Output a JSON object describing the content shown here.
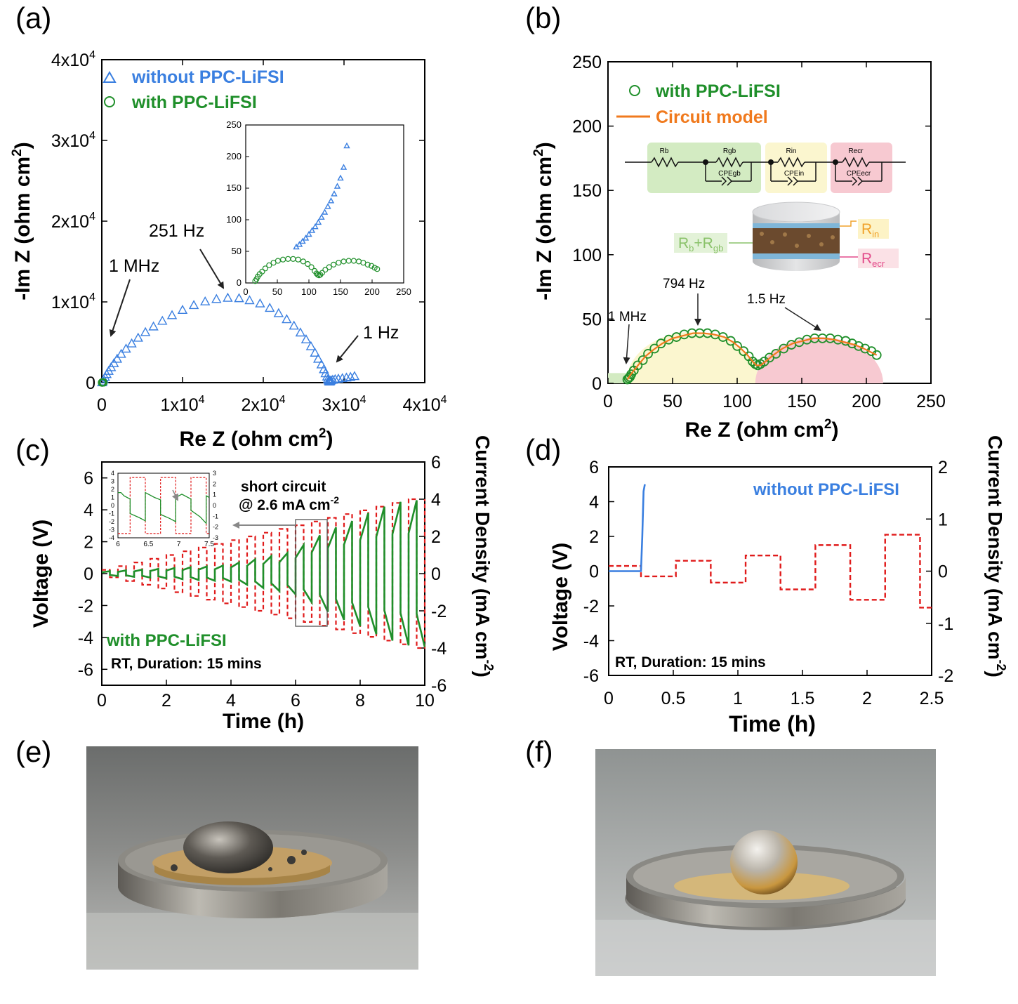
{
  "panels": {
    "a": {
      "label": "(a)"
    },
    "b": {
      "label": "(b)"
    },
    "c": {
      "label": "(c)"
    },
    "d": {
      "label": "(d)"
    },
    "e": {
      "label": "(e)"
    },
    "f": {
      "label": "(f)"
    }
  },
  "colors": {
    "blue": "#3a7fe0",
    "green": "#1f8f2a",
    "red": "#e01b1b",
    "orange": "#f07a1e",
    "pink": "#e24a8a",
    "green_bg": "#d3ebc2",
    "yellow_bg": "#fbf6cf",
    "pink_bg": "#f7c9d1"
  },
  "chart_data": [
    {
      "id": "a",
      "type": "scatter",
      "xlabel_main": "Re Z (ohm cm",
      "xlabel_sup": "2",
      "xlabel_end": ")",
      "ylabel_main": "-Im Z (ohm cm",
      "ylabel_sup": "2",
      "ylabel_end": ")",
      "xlim": [
        0,
        40000
      ],
      "ylim": [
        0,
        40000
      ],
      "x_ticks": [
        "0",
        "1x10",
        "2x10",
        "3x10",
        "4x10"
      ],
      "y_ticks": [
        "0",
        "1x10",
        "2x10",
        "3x10",
        "4x10"
      ],
      "tick_exp": "4",
      "legend": [
        "without PPC-LiFSI",
        "with PPC-LiFSI"
      ],
      "annotations": [
        "1 MHz",
        "251 Hz",
        "1 Hz"
      ],
      "series": [
        {
          "name": "without PPC-LiFSI",
          "marker": "triangle",
          "x": [
            30,
            120,
            250,
            400,
            600,
            850,
            1150,
            1500,
            1900,
            2400,
            3000,
            3700,
            4500,
            5400,
            6400,
            7500,
            8700,
            10000,
            11400,
            12800,
            14200,
            15600,
            17000,
            18300,
            19600,
            20800,
            21900,
            22900,
            23800,
            24600,
            25300,
            25900,
            26400,
            26800,
            27200,
            27500,
            27700,
            27900,
            28000,
            28100,
            28150,
            28200,
            28250,
            28300,
            28400,
            28600,
            28900,
            29300,
            29800,
            30300,
            30800,
            31300
          ],
          "y": [
            30,
            150,
            400,
            700,
            1050,
            1450,
            1900,
            2400,
            2950,
            3550,
            4200,
            4850,
            5550,
            6250,
            6950,
            7650,
            8350,
            9000,
            9600,
            10050,
            10350,
            10500,
            10450,
            10200,
            9800,
            9250,
            8600,
            7850,
            7050,
            6200,
            5350,
            4500,
            3700,
            2950,
            2250,
            1650,
            1150,
            750,
            450,
            250,
            150,
            120,
            150,
            200,
            280,
            350,
            420,
            480,
            550,
            620,
            700,
            800
          ]
        },
        {
          "name": "with PPC-LiFSI",
          "marker": "circle",
          "x": [
            15,
            40,
            70,
            100,
            130,
            160,
            190,
            210
          ],
          "y": [
            5,
            30,
            35,
            20,
            15,
            30,
            35,
            25
          ]
        }
      ],
      "inset": {
        "xlim": [
          0,
          250
        ],
        "ylim": [
          0,
          250
        ],
        "x_ticks": [
          "0",
          "50",
          "100",
          "150",
          "200",
          "250"
        ],
        "y_ticks": [
          "0",
          "50",
          "100",
          "150",
          "200",
          "250"
        ],
        "without_x": [
          80,
          85,
          90,
          95,
          100,
          105,
          110,
          115,
          120,
          125,
          130,
          135,
          140,
          145,
          150,
          155,
          160
        ],
        "without_y": [
          57,
          61,
          66,
          71,
          77,
          83,
          89,
          96,
          104,
          112,
          121,
          130,
          141,
          153,
          166,
          183,
          217
        ],
        "with_x": [
          15,
          17,
          19,
          22,
          26,
          31,
          37,
          44,
          51,
          59,
          67,
          75,
          83,
          91,
          98,
          104,
          109,
          112,
          114,
          116,
          118,
          121,
          126,
          132,
          139,
          147,
          155,
          163,
          171,
          179,
          186,
          193,
          199,
          204,
          208
        ],
        "with_y": [
          3,
          6,
          10,
          14,
          18,
          23,
          28,
          32,
          35,
          37,
          38,
          38,
          37,
          34,
          30,
          25,
          19,
          15,
          13,
          12,
          13,
          16,
          21,
          25,
          29,
          32,
          34,
          35,
          35,
          34,
          32,
          29,
          27,
          24,
          22
        ]
      }
    },
    {
      "id": "b",
      "type": "scatter",
      "xlabel_main": "Re Z (ohm cm",
      "xlabel_sup": "2",
      "xlabel_end": ")",
      "ylabel_main": "-Im Z (ohm cm",
      "ylabel_sup": "2",
      "ylabel_end": ")",
      "xlim": [
        0,
        250
      ],
      "ylim": [
        0,
        250
      ],
      "x_ticks": [
        "0",
        "50",
        "100",
        "150",
        "200",
        "250"
      ],
      "y_ticks": [
        "0",
        "50",
        "100",
        "150",
        "200",
        "250"
      ],
      "legend": [
        "with PPC-LiFSI",
        "Circuit model"
      ],
      "annotations": [
        "1 MHz",
        "794 Hz",
        "1.5 Hz"
      ],
      "circuit_labels": [
        "Rb",
        "Rgb",
        "CPEgb",
        "Rin",
        "CPEin",
        "Recr",
        "CPEecr"
      ],
      "cell_labels": {
        "rbgb_main": "R",
        "rb_sub": "b",
        "plus": "+R",
        "rgb_sub": "gb",
        "rin_main": "R",
        "rin_sub": "in",
        "recr_main": "R",
        "recr_sub": "ecr"
      },
      "series": [
        {
          "name": "with PPC-LiFSI",
          "marker": "circle",
          "x": [
            15,
            16,
            17,
            18,
            20,
            23,
            27,
            31,
            36,
            41,
            47,
            53,
            59,
            65,
            71,
            77,
            83,
            89,
            95,
            100,
            105,
            109,
            112,
            114,
            116,
            118,
            121,
            125,
            130,
            136,
            142,
            148,
            154,
            160,
            166,
            172,
            178,
            184,
            189,
            194,
            199,
            204,
            208
          ],
          "y": [
            3,
            4,
            5,
            7,
            10,
            14,
            18,
            23,
            27,
            31,
            34,
            36,
            38,
            39,
            39,
            39,
            38,
            36,
            33,
            29,
            25,
            21,
            17,
            15,
            14,
            15,
            17,
            20,
            23,
            27,
            30,
            32,
            34,
            35,
            35,
            35,
            34,
            33,
            31,
            29,
            27,
            25,
            22
          ]
        },
        {
          "name": "Circuit model",
          "marker": "line",
          "x": [
            15,
            17,
            20,
            24,
            29,
            35,
            42,
            50,
            58,
            66,
            74,
            82,
            90,
            97,
            103,
            108,
            112,
            115,
            118,
            122,
            128,
            135,
            143,
            151,
            159,
            167,
            175,
            183,
            191,
            198,
            204,
            208
          ],
          "y": [
            3,
            6,
            10,
            15,
            21,
            26,
            31,
            35,
            37,
            39,
            39,
            38,
            36,
            32,
            27,
            22,
            17,
            14,
            14,
            17,
            22,
            27,
            31,
            33,
            35,
            35,
            34,
            32,
            30,
            27,
            24,
            22
          ]
        }
      ]
    },
    {
      "id": "c",
      "type": "line",
      "xlabel": "Time (h)",
      "ylabel_left": "Voltage (V)",
      "ylabel_right_main": "Current Density (mA cm",
      "ylabel_right_sup": "-2",
      "ylabel_right_end": ")",
      "xlim": [
        0,
        10
      ],
      "ylim_left": [
        -7,
        7
      ],
      "ylim_right": [
        -6,
        6
      ],
      "x_ticks": [
        "0",
        "2",
        "4",
        "6",
        "8",
        "10"
      ],
      "y_ticks_left": [
        "-6",
        "-4",
        "-2",
        "0",
        "2",
        "4",
        "6"
      ],
      "y_ticks_right": [
        "-6",
        "-4",
        "-2",
        "0",
        "2",
        "4",
        "6"
      ],
      "labels": {
        "series": "with PPC-LiFSI",
        "conditions": "RT, Duration: 15 mins",
        "short_line1": "short circuit",
        "short_line2": "@ 2.6 mA cm",
        "short_sup": "-2"
      },
      "current_amplitude_by_cycle": [
        0.2,
        0.4,
        0.6,
        0.8,
        1.0,
        1.2,
        1.4,
        1.6,
        1.8,
        2.0,
        2.2,
        2.4,
        2.6,
        2.8,
        3.0,
        3.2,
        3.4,
        3.6,
        3.8,
        4.0
      ],
      "voltage_amplitude_by_cycle": [
        0.15,
        0.2,
        0.25,
        0.3,
        0.35,
        0.4,
        0.45,
        0.5,
        0.7,
        0.9,
        1.1,
        1.3,
        1.8,
        2.4,
        2.9,
        3.3,
        3.8,
        4.2,
        4.5,
        4.6
      ],
      "inset": {
        "xlim": [
          6,
          7.5
        ],
        "x_ticks": [
          "6",
          "6.5",
          "7",
          "7.5"
        ],
        "y_ticks_left": [
          "-4",
          "-3",
          "-2",
          "-1",
          "0",
          "1",
          "2",
          "3",
          "4"
        ],
        "y_ticks_right": [
          "-3",
          "-2",
          "-1",
          "0",
          "1",
          "2",
          "3"
        ]
      }
    },
    {
      "id": "d",
      "type": "line",
      "xlabel": "Time (h)",
      "ylabel_left": "Voltage (V)",
      "ylabel_right_main": "Current Density (mA cm",
      "ylabel_right_sup": "-2",
      "ylabel_right_end": ")",
      "xlim": [
        0,
        2.5
      ],
      "ylim_left": [
        -6,
        6
      ],
      "ylim_right": [
        -2,
        2
      ],
      "x_ticks": [
        "0",
        "0.5",
        "1",
        "1.5",
        "2",
        "2.5"
      ],
      "y_ticks_left": [
        "-6",
        "-4",
        "-2",
        "0",
        "2",
        "4",
        "6"
      ],
      "y_ticks_right": [
        "-2",
        "-1",
        "0",
        "1",
        "2"
      ],
      "labels": {
        "series": "without PPC-LiFSI",
        "conditions": "RT, Duration: 15 mins"
      },
      "voltage": {
        "x": [
          0,
          0.25,
          0.26,
          0.27,
          0.28
        ],
        "y": [
          0,
          0,
          2.0,
          4.6,
          5.0
        ]
      },
      "current": {
        "x": [
          0,
          0.25,
          0.25,
          0.52,
          0.52,
          0.79,
          0.79,
          1.06,
          1.06,
          1.33,
          1.33,
          1.6,
          1.6,
          1.87,
          1.87,
          2.14,
          2.14,
          2.41,
          2.41,
          2.5
        ],
        "y": [
          0.1,
          0.1,
          -0.1,
          -0.1,
          0.2,
          0.2,
          -0.22,
          -0.22,
          0.3,
          0.3,
          -0.35,
          -0.35,
          0.5,
          0.5,
          -0.55,
          -0.55,
          0.7,
          0.7,
          -0.7,
          -0.7
        ]
      }
    }
  ]
}
